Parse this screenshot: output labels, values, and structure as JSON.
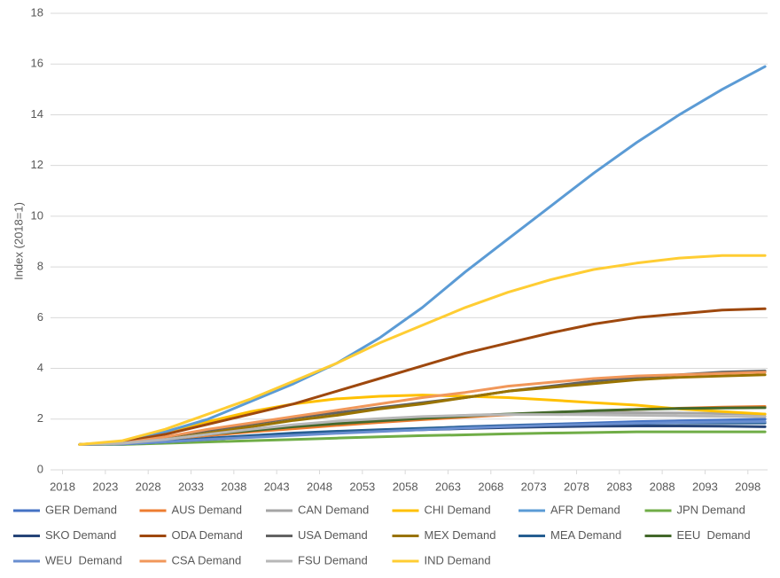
{
  "chart_data": {
    "type": "line",
    "y_label": "Index (2018=1)",
    "x": [
      2020,
      2025,
      2030,
      2035,
      2040,
      2045,
      2050,
      2055,
      2060,
      2065,
      2070,
      2075,
      2080,
      2085,
      2090,
      2095,
      2100
    ],
    "xlim": [
      2016.6,
      2100.3
    ],
    "xticks": [
      2018,
      2023,
      2028,
      2033,
      2038,
      2043,
      2048,
      2053,
      2058,
      2063,
      2068,
      2073,
      2078,
      2083,
      2088,
      2093,
      2098
    ],
    "ylim": [
      0,
      18
    ],
    "yticks": [
      0,
      2,
      4,
      6,
      8,
      10,
      12,
      14,
      16,
      18
    ],
    "grid": true,
    "legend": "bottom",
    "series": [
      {
        "name": "GER Demand",
        "color": "#4472c4",
        "values": [
          1,
          1.02,
          1.1,
          1.2,
          1.3,
          1.4,
          1.48,
          1.55,
          1.62,
          1.7,
          1.75,
          1.8,
          1.85,
          1.9,
          1.93,
          1.96,
          2.0
        ]
      },
      {
        "name": "AUS Demand",
        "color": "#ed7d31",
        "values": [
          1,
          1.05,
          1.2,
          1.35,
          1.5,
          1.62,
          1.75,
          1.87,
          1.98,
          2.08,
          2.17,
          2.25,
          2.32,
          2.38,
          2.43,
          2.47,
          2.5
        ]
      },
      {
        "name": "CAN Demand",
        "color": "#a5a5a5",
        "values": [
          1,
          1.05,
          1.2,
          1.4,
          1.6,
          1.75,
          1.9,
          2.0,
          2.08,
          2.15,
          2.2,
          2.23,
          2.25,
          2.25,
          2.24,
          2.22,
          2.2
        ]
      },
      {
        "name": "CHI Demand",
        "color": "#ffc000",
        "values": [
          1,
          1.1,
          1.5,
          1.9,
          2.3,
          2.6,
          2.8,
          2.9,
          2.95,
          2.9,
          2.85,
          2.75,
          2.65,
          2.55,
          2.4,
          2.3,
          2.2
        ]
      },
      {
        "name": "AFR Demand",
        "color": "#5b9bd5",
        "values": [
          1,
          1.1,
          1.5,
          2.0,
          2.7,
          3.4,
          4.2,
          5.2,
          6.4,
          7.8,
          9.1,
          10.4,
          11.7,
          12.9,
          14.0,
          15.0,
          15.9
        ]
      },
      {
        "name": "JPN Demand",
        "color": "#70ad47",
        "values": [
          1,
          1.0,
          1.05,
          1.1,
          1.15,
          1.2,
          1.25,
          1.3,
          1.35,
          1.38,
          1.42,
          1.45,
          1.47,
          1.5,
          1.5,
          1.5,
          1.5
        ]
      },
      {
        "name": "SKO Demand",
        "color": "#264478",
        "values": [
          1,
          1.02,
          1.1,
          1.2,
          1.3,
          1.4,
          1.47,
          1.53,
          1.58,
          1.63,
          1.67,
          1.7,
          1.72,
          1.73,
          1.73,
          1.72,
          1.7
        ]
      },
      {
        "name": "ODA Demand",
        "color": "#9e480e",
        "values": [
          1,
          1.1,
          1.4,
          1.8,
          2.2,
          2.6,
          3.1,
          3.6,
          4.1,
          4.6,
          5.0,
          5.4,
          5.75,
          6.0,
          6.15,
          6.3,
          6.35
        ]
      },
      {
        "name": "USA Demand",
        "color": "#636363",
        "values": [
          1,
          1.05,
          1.3,
          1.55,
          1.8,
          2.05,
          2.25,
          2.45,
          2.65,
          2.85,
          3.1,
          3.3,
          3.5,
          3.65,
          3.75,
          3.85,
          3.9
        ]
      },
      {
        "name": "MEX Demand",
        "color": "#997300",
        "values": [
          1,
          1.05,
          1.2,
          1.45,
          1.7,
          1.95,
          2.15,
          2.4,
          2.6,
          2.85,
          3.1,
          3.25,
          3.4,
          3.55,
          3.65,
          3.7,
          3.75
        ]
      },
      {
        "name": "MEA Demand",
        "color": "#255e91",
        "values": [
          1,
          1.02,
          1.1,
          1.25,
          1.35,
          1.45,
          1.52,
          1.58,
          1.64,
          1.69,
          1.74,
          1.78,
          1.81,
          1.83,
          1.85,
          1.85,
          1.85
        ]
      },
      {
        "name": "EEU  Demand",
        "color": "#43682b",
        "values": [
          1,
          1.05,
          1.2,
          1.4,
          1.55,
          1.7,
          1.82,
          1.93,
          2.03,
          2.12,
          2.2,
          2.27,
          2.33,
          2.38,
          2.42,
          2.44,
          2.45
        ]
      },
      {
        "name": "WEU  Demand",
        "color": "#698ed0",
        "values": [
          1,
          1.02,
          1.1,
          1.2,
          1.28,
          1.36,
          1.44,
          1.51,
          1.58,
          1.65,
          1.71,
          1.76,
          1.8,
          1.84,
          1.87,
          1.89,
          1.9
        ]
      },
      {
        "name": "CSA Demand",
        "color": "#f1975a",
        "values": [
          1,
          1.05,
          1.3,
          1.6,
          1.85,
          2.1,
          2.35,
          2.6,
          2.85,
          3.05,
          3.3,
          3.45,
          3.6,
          3.7,
          3.75,
          3.8,
          3.85
        ]
      },
      {
        "name": "FSU Demand",
        "color": "#b7b7b7",
        "values": [
          1,
          1.05,
          1.2,
          1.4,
          1.6,
          1.78,
          1.92,
          2.02,
          2.1,
          2.15,
          2.18,
          2.18,
          2.17,
          2.15,
          2.13,
          2.11,
          2.1
        ]
      },
      {
        "name": "IND Demand",
        "color": "#ffcd33",
        "values": [
          1,
          1.15,
          1.6,
          2.2,
          2.8,
          3.5,
          4.2,
          5.0,
          5.7,
          6.4,
          7.0,
          7.5,
          7.9,
          8.15,
          8.35,
          8.45,
          8.45
        ]
      }
    ]
  }
}
